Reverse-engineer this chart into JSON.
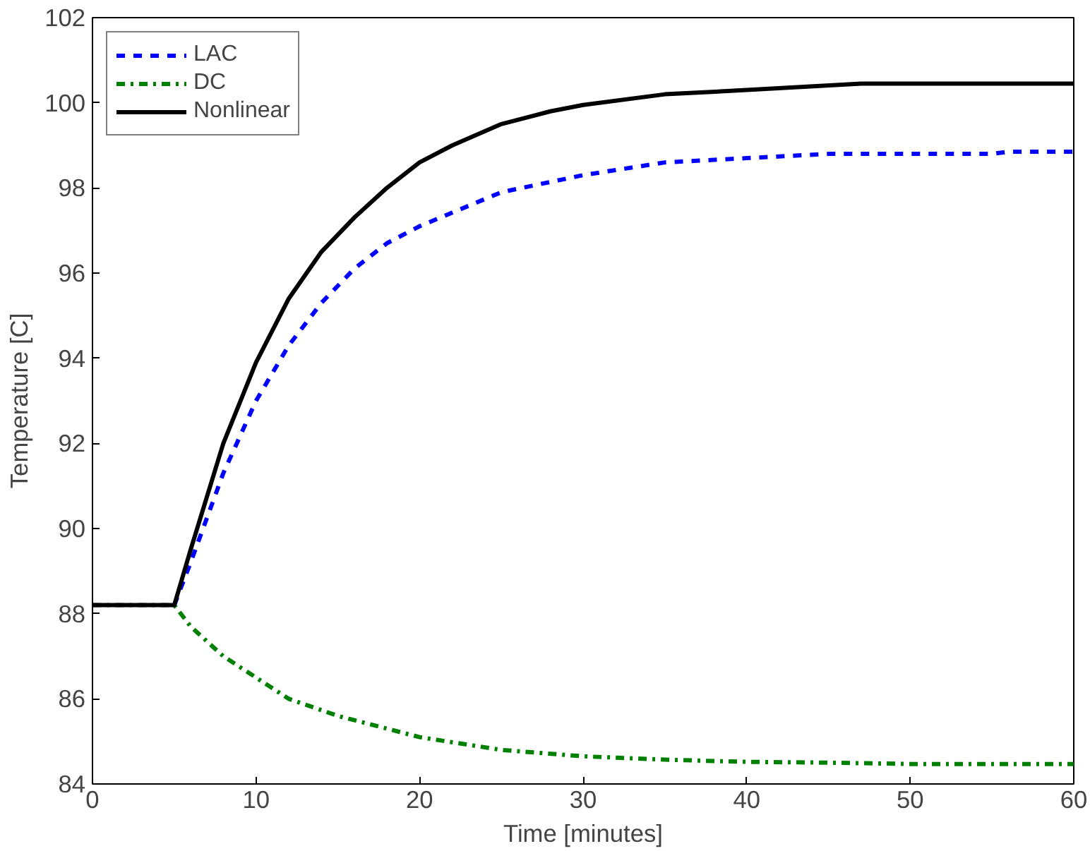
{
  "chart_data": {
    "type": "line",
    "xlabel": "Time [minutes]",
    "ylabel": "Temperature [C]",
    "xlim": [
      0,
      60
    ],
    "ylim": [
      84,
      102
    ],
    "xticks": [
      0,
      10,
      20,
      30,
      40,
      50,
      60
    ],
    "yticks": [
      84,
      86,
      88,
      90,
      92,
      94,
      96,
      98,
      100,
      102
    ],
    "grid": false,
    "legend": "top left",
    "series": [
      {
        "name": "LAC",
        "color": "#0000ff",
        "line_style": "dashed",
        "x": [
          5,
          6,
          8,
          10,
          12,
          14,
          16,
          18,
          20,
          25,
          30,
          35,
          40,
          45,
          55,
          56,
          60
        ],
        "values": [
          88.2,
          89.2,
          91.3,
          93.0,
          94.3,
          95.3,
          96.1,
          96.7,
          97.1,
          97.9,
          98.3,
          98.6,
          98.7,
          98.8,
          98.8,
          98.85,
          98.85
        ]
      },
      {
        "name": "DC",
        "color": "#008000",
        "line_style": "dashdot",
        "x": [
          0,
          5,
          6,
          8,
          10,
          12,
          15,
          18,
          20,
          25,
          30,
          35,
          40,
          45,
          50,
          60
        ],
        "values": [
          88.2,
          88.2,
          87.7,
          87.0,
          86.5,
          86.0,
          85.6,
          85.3,
          85.1,
          84.8,
          84.65,
          84.57,
          84.52,
          84.5,
          84.47,
          84.47
        ]
      },
      {
        "name": "Nonlinear",
        "color": "#000000",
        "line_style": "solid",
        "x": [
          0,
          5,
          6,
          8,
          10,
          12,
          14,
          16,
          18,
          20,
          22,
          25,
          28,
          30,
          35,
          40,
          47,
          60
        ],
        "values": [
          88.2,
          88.2,
          89.5,
          92.0,
          93.9,
          95.4,
          96.5,
          97.3,
          98.0,
          98.6,
          99.0,
          99.5,
          99.8,
          99.95,
          100.2,
          100.3,
          100.45,
          100.45
        ]
      }
    ]
  }
}
